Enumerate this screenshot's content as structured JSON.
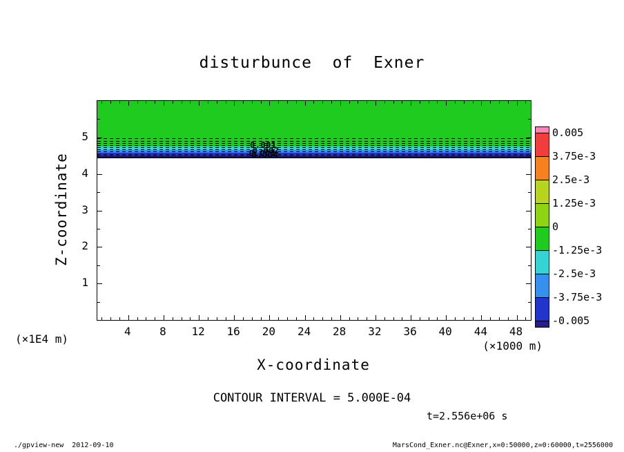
{
  "chart_data": {
    "type": "heatmap",
    "title": "disturbunce  of  Exner",
    "xlabel": "X-coordinate",
    "ylabel": "Z-coordinate",
    "x_unit": "(×1000 m)",
    "y_unit": "(×1E4 m)",
    "xlim": [
      0.5,
      49.6
    ],
    "ylim": [
      0,
      6
    ],
    "x_ticks": [
      4,
      8,
      12,
      16,
      20,
      24,
      28,
      32,
      36,
      40,
      44,
      48
    ],
    "y_ticks": [
      1,
      2,
      3,
      4,
      5
    ],
    "grid": false,
    "legend_position": "right-colorbar",
    "contour_interval_text": "CONTOUR INTERVAL = 5.000E-04",
    "time_text": "t=2.556e+06 s",
    "layers": [
      {
        "value_range": "0 to -1.25e-3",
        "color": "#1ecb1e",
        "z_top": 6.0,
        "z_bottom": 4.75
      },
      {
        "value_range": "-1.25e-3 to -2.5e-3",
        "color": "#35d4d4",
        "z_top": 4.75,
        "z_bottom": 4.66
      },
      {
        "value_range": "-2.5e-3 to -3.75e-3",
        "color": "#3590ee",
        "z_top": 4.66,
        "z_bottom": 4.58
      },
      {
        "value_range": "-3.75e-3 to -0.005",
        "color": "#2135cc",
        "z_top": 4.58,
        "z_bottom": 4.51
      },
      {
        "value_range": "below -0.005",
        "color": "#2a1a8a",
        "z_top": 4.51,
        "z_bottom": 4.46
      },
      {
        "value_range": "contour-dense boundary",
        "color": "#000a33",
        "z_top": 4.46,
        "z_bottom": 4.43
      },
      {
        "value_range": "zero field",
        "color": "#ffffff",
        "z_top": 4.43,
        "z_bottom": 0.0
      }
    ],
    "contour_lines_z": [
      4.97,
      4.91,
      4.85,
      4.79,
      4.73,
      4.67,
      4.61,
      4.55,
      4.5
    ],
    "contour_labels": [
      {
        "text": "0.001",
        "x": 19.5,
        "z": 4.77
      },
      {
        "text": "0.002",
        "x": 19.8,
        "z": 4.62
      },
      {
        "text": "0.003",
        "x": 19.4,
        "z": 4.55
      },
      {
        "text": "0.004",
        "x": 19.7,
        "z": 4.5
      }
    ],
    "colorbar": {
      "labels": [
        "0.005",
        "3.75e-3",
        "2.5e-3",
        "1.25e-3",
        "0",
        "-1.25e-3",
        "-2.5e-3",
        "-3.75e-3",
        "-0.005"
      ],
      "colors": [
        "#f885b5",
        "#f23d3d",
        "#f5821e",
        "#b8d41e",
        "#8fd414",
        "#1ecb1e",
        "#35d4d4",
        "#3590ee",
        "#2135cc",
        "#2a1a8a"
      ]
    },
    "footer_left": "./gpview-new  2012-09-10",
    "footer_right": "MarsCond_Exner.nc@Exner,x=0:50000,z=0:60000,t=2556000"
  }
}
